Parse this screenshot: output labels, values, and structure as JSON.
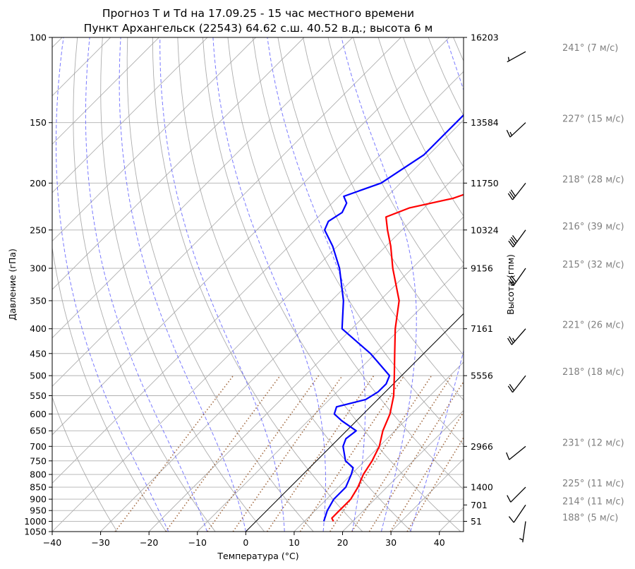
{
  "chart_data": {
    "type": "line",
    "title": "Прогноз T и Td на 17.09.25 - 15 час местного времени",
    "subtitle": "Пункт Архангельск (22543) 64.62 с.ш. 40.52 в.д.; высота 6 м",
    "xlabel": "Температура (°C)",
    "ylabel": "Давление (гПа)",
    "ylabel_right": "Высота (гпм)",
    "xlim": [
      -40,
      45
    ],
    "ylim": [
      1050,
      100
    ],
    "y_scale": "log",
    "grid": true,
    "x_ticks": [
      -40,
      -30,
      -20,
      -10,
      0,
      10,
      20,
      30,
      40
    ],
    "x_tick_labels": [
      "−40",
      "−30",
      "−20",
      "−10",
      "0",
      "10",
      "20",
      "30",
      "40"
    ],
    "y_ticks": [
      100,
      150,
      200,
      250,
      300,
      350,
      400,
      450,
      500,
      550,
      600,
      650,
      700,
      750,
      800,
      850,
      900,
      950,
      1000,
      1050
    ],
    "y_tick_labels": [
      "100",
      "150",
      "200",
      "250",
      "300",
      "350",
      "400",
      "450",
      "500",
      "550",
      "600",
      "650",
      "700",
      "750",
      "800",
      "850",
      "900",
      "950",
      "1000",
      "1050"
    ],
    "heights": [
      {
        "p": 100,
        "label": "16203"
      },
      {
        "p": 150,
        "label": "13584"
      },
      {
        "p": 200,
        "label": "11750"
      },
      {
        "p": 250,
        "label": "10324"
      },
      {
        "p": 300,
        "label": "9156"
      },
      {
        "p": 400,
        "label": "7161"
      },
      {
        "p": 500,
        "label": "5556"
      },
      {
        "p": 700,
        "label": "2966"
      },
      {
        "p": 850,
        "label": "1400"
      },
      {
        "p": 925,
        "label": "701"
      },
      {
        "p": 1000,
        "label": "51"
      }
    ],
    "series": [
      {
        "id": "T",
        "color": "#ff0000",
        "points": [
          [
            1000,
            16.0
          ],
          [
            985,
            15.0
          ],
          [
            950,
            15.0
          ],
          [
            925,
            15.0
          ],
          [
            900,
            15.0
          ],
          [
            850,
            14.0
          ],
          [
            800,
            12.5
          ],
          [
            750,
            11.5
          ],
          [
            700,
            10.0
          ],
          [
            650,
            7.5
          ],
          [
            600,
            5.5
          ],
          [
            550,
            2.5
          ],
          [
            500,
            -1.5
          ],
          [
            450,
            -6.0
          ],
          [
            400,
            -11.0
          ],
          [
            350,
            -16.0
          ],
          [
            300,
            -24.0
          ],
          [
            270,
            -29.0
          ],
          [
            250,
            -33.0
          ],
          [
            235,
            -36.0
          ],
          [
            225,
            -33.0
          ],
          [
            215,
            -26.0
          ],
          [
            200,
            -20.0
          ],
          [
            180,
            -22.0
          ],
          [
            170,
            -23.0
          ],
          [
            160,
            -26.0
          ],
          [
            150,
            -28.0
          ],
          [
            140,
            -28.0
          ],
          [
            130,
            -30.0
          ],
          [
            120,
            -32.0
          ],
          [
            110,
            -34.0
          ],
          [
            100,
            -36.0
          ]
        ]
      },
      {
        "id": "Td",
        "color": "#0000ff",
        "points": [
          [
            1000,
            14.0
          ],
          [
            950,
            12.5
          ],
          [
            925,
            12.0
          ],
          [
            900,
            11.5
          ],
          [
            850,
            11.5
          ],
          [
            800,
            10.0
          ],
          [
            775,
            9.0
          ],
          [
            750,
            6.0
          ],
          [
            700,
            2.5
          ],
          [
            675,
            1.5
          ],
          [
            650,
            2.0
          ],
          [
            620,
            -3.0
          ],
          [
            600,
            -6.0
          ],
          [
            580,
            -7.0
          ],
          [
            560,
            -2.5
          ],
          [
            540,
            -1.5
          ],
          [
            520,
            -1.5
          ],
          [
            500,
            -2.5
          ],
          [
            450,
            -11.0
          ],
          [
            400,
            -22.0
          ],
          [
            350,
            -27.5
          ],
          [
            300,
            -35.0
          ],
          [
            270,
            -41.0
          ],
          [
            250,
            -46.0
          ],
          [
            240,
            -47.0
          ],
          [
            230,
            -46.0
          ],
          [
            220,
            -47.0
          ],
          [
            213,
            -49.0
          ],
          [
            200,
            -44.0
          ],
          [
            175,
            -41.0
          ],
          [
            150,
            -41.0
          ],
          [
            130,
            -41.0
          ],
          [
            115,
            -41.0
          ],
          [
            100,
            -43.0
          ]
        ]
      }
    ],
    "parcel_line": [
      [
        1050,
        0.0
      ],
      [
        358,
        0.0
      ]
    ],
    "winds": [
      {
        "p": 107,
        "dir": 241,
        "speed": 7,
        "label": "241° (7 м/с)"
      },
      {
        "p": 150,
        "dir": 227,
        "speed": 15,
        "label": "227° (15 м/с)"
      },
      {
        "p": 200,
        "dir": 218,
        "speed": 28,
        "label": "218° (28 м/с)"
      },
      {
        "p": 250,
        "dir": 216,
        "speed": 39,
        "label": "216° (39 м/с)"
      },
      {
        "p": 300,
        "dir": 215,
        "speed": 32,
        "label": "215° (32 м/с)"
      },
      {
        "p": 400,
        "dir": 221,
        "speed": 26,
        "label": "221° (26 м/с)"
      },
      {
        "p": 500,
        "dir": 218,
        "speed": 18,
        "label": "218° (18 м/с)"
      },
      {
        "p": 700,
        "dir": 231,
        "speed": 12,
        "label": "231° (12 м/с)"
      },
      {
        "p": 850,
        "dir": 225,
        "speed": 11,
        "label": "225° (11 м/с)"
      },
      {
        "p": 925,
        "dir": 214,
        "speed": 11,
        "label": "214° (11 м/с)"
      },
      {
        "p": 1000,
        "dir": 188,
        "speed": 5,
        "label": "188° (5 м/с)"
      }
    ],
    "colors": {
      "isotherm": "#b0b0b0",
      "dry_adiabat": "#999999",
      "moist_adiabat": "#4d4dff",
      "mixing_ratio": "#8b4513",
      "isobar": "#b0b0b0",
      "wind_label": "#808080"
    }
  }
}
